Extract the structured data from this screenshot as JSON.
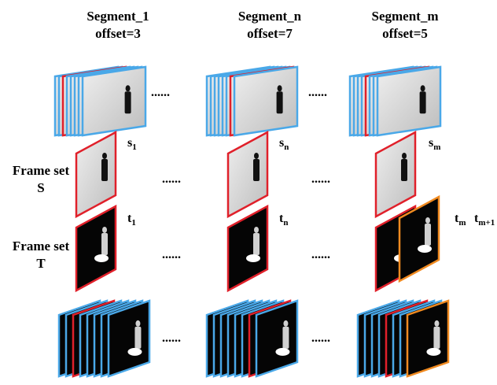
{
  "segments": [
    {
      "title": "Segment_1",
      "offset": "offset=3"
    },
    {
      "title": "Segment_n",
      "offset": "offset=7"
    },
    {
      "title": "Segment_m",
      "offset": "offset=5"
    }
  ],
  "frame_sets": [
    {
      "label": "Frame set",
      "symbol": "S"
    },
    {
      "label": "Frame set",
      "symbol": "T"
    }
  ],
  "s_labels": [
    {
      "base": "s",
      "sub": "1"
    },
    {
      "base": "s",
      "sub": "n"
    },
    {
      "base": "s",
      "sub": "m"
    }
  ],
  "t_labels": [
    {
      "base": "t",
      "sub": "1"
    },
    {
      "base": "t",
      "sub": "n"
    },
    {
      "base": "t",
      "sub": "m"
    },
    {
      "base": "t",
      "sub": "m+1"
    }
  ],
  "dots": [
    "......",
    "......",
    "......",
    "......",
    "......",
    "......",
    "......",
    "......"
  ]
}
